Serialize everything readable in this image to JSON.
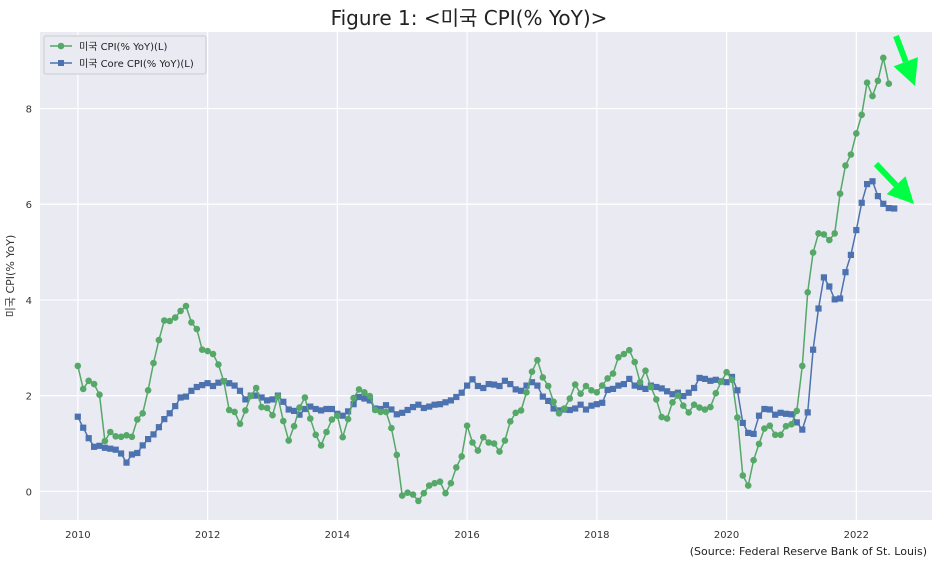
{
  "chart_data": {
    "type": "line",
    "title": "Figure 1: <미국 CPI(% YoY)>",
    "ylabel": "미국 CPI(% YoY)",
    "xlabel": "",
    "source": "(Source: Federal Reserve Bank of St. Louis)",
    "xlim": [
      "2009-06",
      "2023-03"
    ],
    "ylim": [
      -0.6,
      9.6
    ],
    "x_ticks": [
      "2010",
      "2012",
      "2014",
      "2016",
      "2018",
      "2020",
      "2022"
    ],
    "y_ticks": [
      "0",
      "2",
      "4",
      "6",
      "8"
    ],
    "grid": true,
    "legend": "top-left",
    "start": "2010-01",
    "series": [
      {
        "name": "미국 CPI(% YoY)(L)",
        "color": "#55a868",
        "marker": "circle",
        "values": [
          2.62,
          2.14,
          2.31,
          2.24,
          2.02,
          1.05,
          1.24,
          1.15,
          1.14,
          1.17,
          1.14,
          1.5,
          1.63,
          2.11,
          2.68,
          3.16,
          3.57,
          3.56,
          3.63,
          3.77,
          3.87,
          3.53,
          3.39,
          2.96,
          2.93,
          2.87,
          2.65,
          2.3,
          1.7,
          1.66,
          1.41,
          1.69,
          1.99,
          2.16,
          1.76,
          1.74,
          1.59,
          1.98,
          1.47,
          1.06,
          1.36,
          1.75,
          1.96,
          1.52,
          1.18,
          0.96,
          1.24,
          1.5,
          1.58,
          1.13,
          1.51,
          1.95,
          2.13,
          2.07,
          1.99,
          1.7,
          1.66,
          1.66,
          1.32,
          0.76,
          -0.09,
          -0.03,
          -0.07,
          -0.2,
          -0.04,
          0.12,
          0.17,
          0.2,
          -0.04,
          0.17,
          0.5,
          0.73,
          1.37,
          1.02,
          0.85,
          1.13,
          1.02,
          1.0,
          0.83,
          1.06,
          1.46,
          1.64,
          1.69,
          2.07,
          2.5,
          2.74,
          2.38,
          2.2,
          1.87,
          1.63,
          1.73,
          1.94,
          2.23,
          2.04,
          2.2,
          2.11,
          2.07,
          2.21,
          2.36,
          2.46,
          2.8,
          2.87,
          2.95,
          2.7,
          2.28,
          2.52,
          2.18,
          1.92,
          1.55,
          1.52,
          1.86,
          2.0,
          1.79,
          1.65,
          1.81,
          1.75,
          1.71,
          1.76,
          2.05,
          2.29,
          2.49,
          2.33,
          1.54,
          0.33,
          0.12,
          0.65,
          0.99,
          1.31,
          1.37,
          1.18,
          1.18,
          1.36,
          1.4,
          1.68,
          2.62,
          4.16,
          4.99,
          5.39,
          5.37,
          5.25,
          5.39,
          6.22,
          6.81,
          7.04,
          7.48,
          7.87,
          8.54,
          8.26,
          8.58,
          9.06,
          8.52
        ]
      },
      {
        "name": "미국 Core CPI(% YoY)(L)",
        "color": "#4c72b0",
        "marker": "square",
        "values": [
          1.56,
          1.33,
          1.11,
          0.93,
          0.95,
          0.91,
          0.89,
          0.87,
          0.79,
          0.6,
          0.77,
          0.8,
          0.96,
          1.09,
          1.19,
          1.34,
          1.51,
          1.63,
          1.78,
          1.96,
          1.98,
          2.1,
          2.18,
          2.22,
          2.26,
          2.2,
          2.27,
          2.3,
          2.26,
          2.21,
          2.1,
          1.92,
          2.0,
          2.0,
          1.96,
          1.9,
          1.92,
          2.0,
          1.87,
          1.71,
          1.68,
          1.6,
          1.72,
          1.77,
          1.72,
          1.69,
          1.72,
          1.72,
          1.62,
          1.58,
          1.67,
          1.82,
          1.97,
          1.94,
          1.9,
          1.73,
          1.72,
          1.8,
          1.71,
          1.61,
          1.64,
          1.7,
          1.76,
          1.81,
          1.74,
          1.77,
          1.81,
          1.82,
          1.86,
          1.9,
          1.97,
          2.06,
          2.21,
          2.34,
          2.2,
          2.16,
          2.24,
          2.23,
          2.2,
          2.31,
          2.24,
          2.13,
          2.1,
          2.21,
          2.28,
          2.21,
          1.98,
          1.89,
          1.73,
          1.69,
          1.71,
          1.7,
          1.73,
          1.81,
          1.71,
          1.79,
          1.82,
          1.85,
          2.12,
          2.14,
          2.21,
          2.24,
          2.35,
          2.21,
          2.18,
          2.14,
          2.21,
          2.18,
          2.15,
          2.09,
          2.03,
          2.06,
          1.99,
          2.06,
          2.16,
          2.37,
          2.35,
          2.31,
          2.33,
          2.3,
          2.28,
          2.39,
          2.11,
          1.43,
          1.22,
          1.2,
          1.58,
          1.72,
          1.71,
          1.6,
          1.64,
          1.62,
          1.61,
          1.44,
          1.29,
          1.65,
          2.96,
          3.82,
          4.47,
          4.28,
          4.01,
          4.03,
          4.58,
          4.94,
          5.46,
          6.03,
          6.42,
          6.48,
          6.17,
          6.01,
          5.92,
          5.91
        ]
      }
    ]
  },
  "annotations": {
    "arrow_color": "#00ff44",
    "arrow_icon": "green-down-right-arrow-icon"
  }
}
